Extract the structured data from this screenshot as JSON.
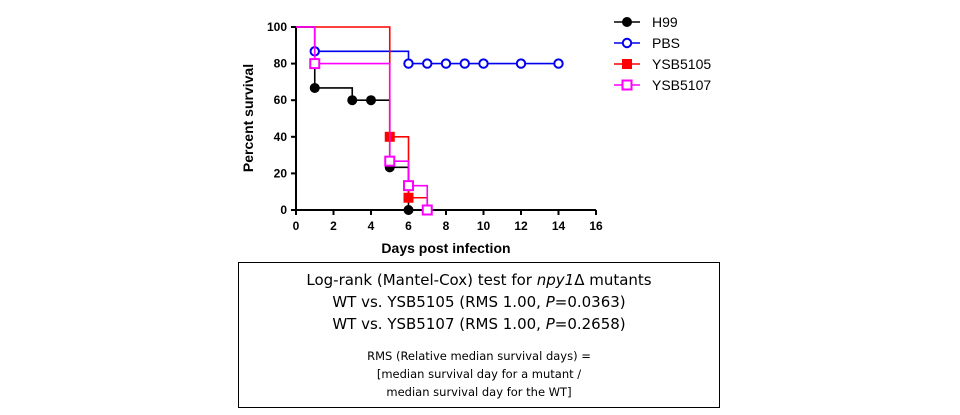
{
  "chart_data": {
    "type": "line",
    "subtype": "kaplan-meier-survival",
    "xlabel": "Days post infection",
    "ylabel": "Percent survival",
    "xlim": [
      0,
      16
    ],
    "ylim": [
      0,
      100
    ],
    "xticks": [
      0,
      2,
      4,
      6,
      8,
      10,
      12,
      14,
      16
    ],
    "yticks": [
      0,
      20,
      40,
      60,
      80,
      100
    ],
    "legend_position": "right",
    "grid": false,
    "series": [
      {
        "name": "H99",
        "color": "#000000",
        "marker": "filled-circle",
        "steps": [
          [
            0,
            100
          ],
          [
            1,
            66.7
          ],
          [
            3,
            60
          ],
          [
            4,
            60
          ],
          [
            5,
            23.3
          ],
          [
            6,
            0
          ]
        ],
        "markers": [
          [
            1,
            66.7
          ],
          [
            3,
            60
          ],
          [
            4,
            60
          ],
          [
            5,
            23.3
          ],
          [
            6,
            0
          ]
        ]
      },
      {
        "name": "PBS",
        "color": "#0000ee",
        "marker": "open-circle",
        "steps": [
          [
            0,
            100
          ],
          [
            1,
            86.7
          ],
          [
            6,
            80
          ],
          [
            14,
            80
          ]
        ],
        "markers": [
          [
            1,
            86.7
          ],
          [
            6,
            80
          ],
          [
            7,
            80
          ],
          [
            8,
            80
          ],
          [
            9,
            80
          ],
          [
            10,
            80
          ],
          [
            12,
            80
          ],
          [
            14,
            80
          ]
        ]
      },
      {
        "name": "YSB5105",
        "color": "#ff0000",
        "marker": "filled-square",
        "steps": [
          [
            0,
            100
          ],
          [
            5,
            40
          ],
          [
            6,
            6.7
          ],
          [
            7,
            0
          ]
        ],
        "markers": [
          [
            5,
            40
          ],
          [
            6,
            6.7
          ],
          [
            7,
            0
          ]
        ]
      },
      {
        "name": "YSB5107",
        "color": "#ff00ff",
        "marker": "open-square",
        "steps": [
          [
            0,
            100
          ],
          [
            1,
            80
          ],
          [
            5,
            26.7
          ],
          [
            6,
            13.3
          ],
          [
            7,
            0
          ]
        ],
        "markers": [
          [
            1,
            80
          ],
          [
            5,
            26.7
          ],
          [
            6,
            13.3
          ],
          [
            7,
            0
          ]
        ]
      }
    ]
  },
  "stats_box": {
    "line1_prefix": "Log-rank (Mantel-Cox) test for ",
    "line1_gene": "npy1",
    "line1_suffix": "Δ mutants",
    "line2_prefix": "WT vs. YSB5105 (RMS 1.00, ",
    "line2_p": "P",
    "line2_suffix": "=0.0363)",
    "line3_prefix": "WT vs. YSB5107 (RMS 1.00, ",
    "line3_p": "P",
    "line3_suffix": "=0.2658)",
    "note1": "RMS (Relative median survival days) =",
    "note2": "[median survival day for a mutant  /",
    "note3": "median survival day for the WT]"
  }
}
